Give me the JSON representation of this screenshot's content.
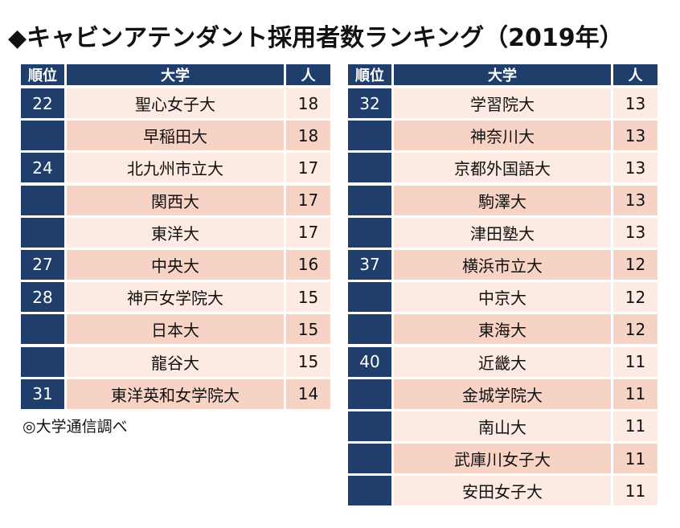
{
  "title": "◆キャビンアテンダント採用者数ランキング（2019年）",
  "headers": {
    "rank": "順位",
    "university": "大学",
    "count": "人"
  },
  "left_rows": [
    {
      "rank": "22",
      "university": "聖心女子大",
      "count": "18"
    },
    {
      "rank": "",
      "university": "早稲田大",
      "count": "18"
    },
    {
      "rank": "24",
      "university": "北九州市立大",
      "count": "17"
    },
    {
      "rank": "",
      "university": "関西大",
      "count": "17"
    },
    {
      "rank": "",
      "university": "東洋大",
      "count": "17"
    },
    {
      "rank": "27",
      "university": "中央大",
      "count": "16"
    },
    {
      "rank": "28",
      "university": "神戸女学院大",
      "count": "15"
    },
    {
      "rank": "",
      "university": "日本大",
      "count": "15"
    },
    {
      "rank": "",
      "university": "龍谷大",
      "count": "15"
    },
    {
      "rank": "31",
      "university": "東洋英和女学院大",
      "count": "14"
    }
  ],
  "right_rows": [
    {
      "rank": "32",
      "university": "学習院大",
      "count": "13"
    },
    {
      "rank": "",
      "university": "神奈川大",
      "count": "13"
    },
    {
      "rank": "",
      "university": "京都外国語大",
      "count": "13"
    },
    {
      "rank": "",
      "university": "駒澤大",
      "count": "13"
    },
    {
      "rank": "",
      "university": "津田塾大",
      "count": "13"
    },
    {
      "rank": "37",
      "university": "横浜市立大",
      "count": "12"
    },
    {
      "rank": "",
      "university": "中京大",
      "count": "12"
    },
    {
      "rank": "",
      "university": "東海大",
      "count": "12"
    },
    {
      "rank": "40",
      "university": "近畿大",
      "count": "11"
    },
    {
      "rank": "",
      "university": "金城学院大",
      "count": "11"
    },
    {
      "rank": "",
      "university": "南山大",
      "count": "11"
    },
    {
      "rank": "",
      "university": "武庫川女子大",
      "count": "11"
    },
    {
      "rank": "",
      "university": "安田女子大",
      "count": "11"
    }
  ],
  "source_note": "◎大学通信調べ",
  "colors": {
    "header_navy": "#1f3e6b",
    "row_light": "#fdeae3",
    "row_dark": "#f6d3c5"
  }
}
